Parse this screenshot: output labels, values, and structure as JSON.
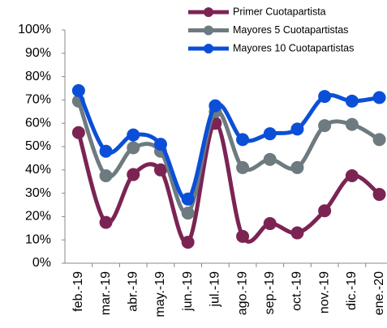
{
  "chart_data": {
    "type": "line",
    "categories": [
      "feb.-19",
      "mar.-19",
      "abr.-19",
      "may.-19",
      "jun.-19",
      "jul.-19",
      "ago.-19",
      "sep.-19",
      "oct.-19",
      "nov.-19",
      "dic.-19",
      "ene.-20"
    ],
    "series": [
      {
        "name": "Primer Cuotapartista",
        "color": "#7b2454",
        "values": [
          56,
          17.5,
          38,
          40,
          9,
          60,
          11.5,
          17,
          13,
          22.5,
          37.5,
          29.5
        ]
      },
      {
        "name": "Mayores 5 Cuotapartistas",
        "color": "#6d7b80",
        "values": [
          69.5,
          37.5,
          49.5,
          48,
          21.5,
          65,
          41,
          44.5,
          41,
          59,
          59.5,
          53
        ]
      },
      {
        "name": "Mayores 10 Cuotapartistas",
        "color": "#0b4fd8",
        "values": [
          74,
          48,
          55,
          51,
          27.5,
          67.5,
          53,
          55.5,
          57.5,
          71.5,
          69.5,
          71
        ]
      }
    ],
    "ylim": [
      0,
      100
    ],
    "yticks": [
      {
        "value": 0,
        "label": "0%"
      },
      {
        "value": 10,
        "label": "10%"
      },
      {
        "value": 20,
        "label": "20%"
      },
      {
        "value": 30,
        "label": "30%"
      },
      {
        "value": 40,
        "label": "40%"
      },
      {
        "value": 50,
        "label": "50%"
      },
      {
        "value": 60,
        "label": "60%"
      },
      {
        "value": 70,
        "label": "70%"
      },
      {
        "value": 80,
        "label": "80%"
      },
      {
        "value": 90,
        "label": "90%"
      },
      {
        "value": 100,
        "label": "100%"
      }
    ],
    "legend": "top-right"
  }
}
